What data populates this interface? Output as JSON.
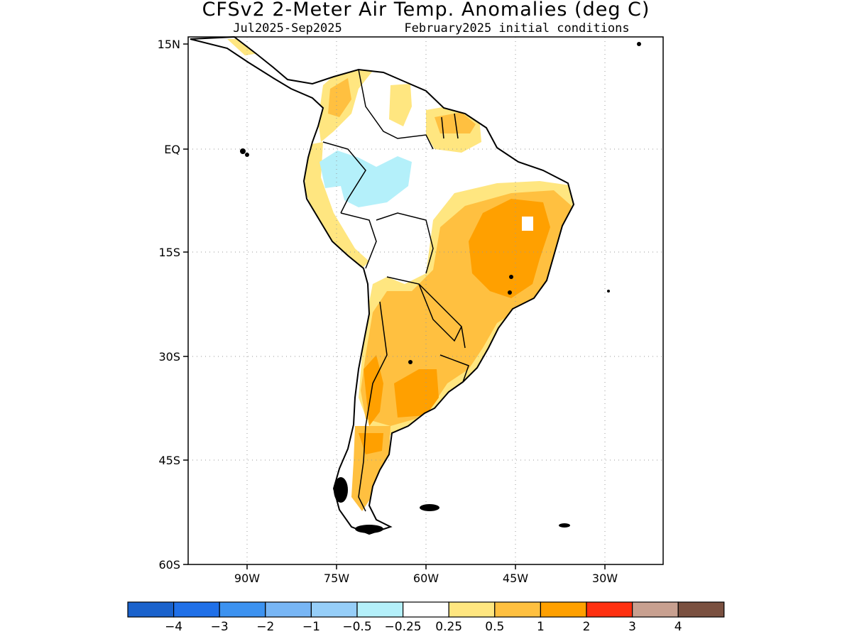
{
  "title": "CFSv2 2-Meter Air Temp. Anomalies (deg C)",
  "subtitle_period": "Jul2025-Sep2025",
  "subtitle_init": "February2025 initial conditions",
  "map": {
    "lat_labels": [
      "15N",
      "EQ",
      "15S",
      "30S",
      "45S",
      "60S"
    ],
    "lon_labels": [
      "90W",
      "75W",
      "60W",
      "45W",
      "30W"
    ],
    "grid_lines": true
  },
  "colorbar": {
    "colors": [
      "#1a62cc",
      "#2070e8",
      "#3c92f0",
      "#78b6f5",
      "#96cef8",
      "#b4f0fa",
      "#ffffff",
      "#ffe680",
      "#ffc040",
      "#ffa000",
      "#ff3010",
      "#c8a090",
      "#7a5040"
    ],
    "labels": [
      "-4",
      "-3",
      "-2",
      "-1",
      "-0.5",
      "-0.25",
      "0.25",
      "0.5",
      "1",
      "2",
      "3",
      "4"
    ]
  },
  "anomaly_colors": {
    "light_yellow": "#ffe680",
    "light_orange": "#ffc040",
    "orange": "#ffa000",
    "light_cyan": "#b4f0fa"
  }
}
